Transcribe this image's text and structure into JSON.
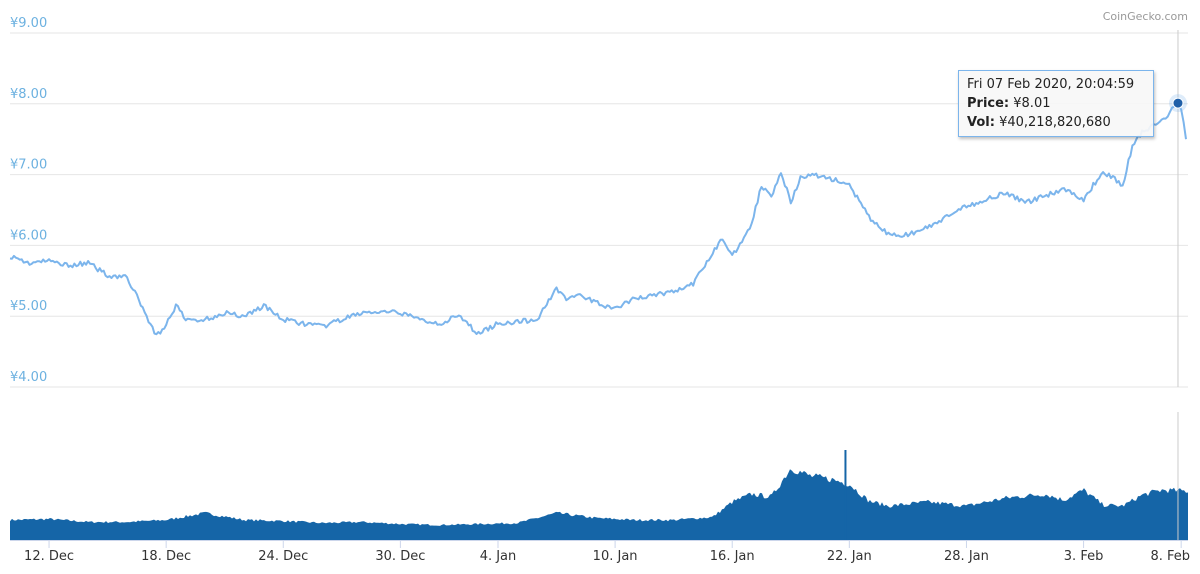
{
  "credit": "CoinGecko.com",
  "tooltip": {
    "date": "Fri 07 Feb 2020, 20:04:59",
    "price_label": "Price:",
    "price_value": "¥8.01",
    "vol_label": "Vol:",
    "vol_value": "¥40,218,820,680"
  },
  "colors": {
    "price_line": "#7cb5ec",
    "volume_fill": "#1565a7",
    "hover_point": "#1f5fa8",
    "grid": "#e6e6e6",
    "ytick": "#6cb1e0"
  },
  "chart_data": {
    "type": "line",
    "x_range": [
      "2019-12-10",
      "2020-02-08"
    ],
    "xtick_labels": [
      "12. Dec",
      "18. Dec",
      "24. Dec",
      "30. Dec",
      "4. Jan",
      "10. Jan",
      "16. Jan",
      "22. Jan",
      "28. Jan",
      "3. Feb",
      "8. Feb"
    ],
    "xtick_dates": [
      "2019-12-12",
      "2019-12-18",
      "2019-12-24",
      "2019-12-30",
      "2020-01-04",
      "2020-01-10",
      "2020-01-16",
      "2020-01-22",
      "2020-01-28",
      "2020-02-03",
      "2020-02-08"
    ],
    "ytick_labels": [
      "¥4.00",
      "¥5.00",
      "¥6.00",
      "¥7.00",
      "¥8.00",
      "¥9.00"
    ],
    "ylim": [
      4,
      9
    ],
    "price": {
      "x": [
        "2019-12-10",
        "2019-12-11",
        "2019-12-12",
        "2019-12-13",
        "2019-12-14",
        "2019-12-15",
        "2019-12-16",
        "2019-12-17",
        "2019-12-17T12:00",
        "2019-12-18",
        "2019-12-18T12:00",
        "2019-12-19",
        "2019-12-20",
        "2019-12-21",
        "2019-12-22",
        "2019-12-23",
        "2019-12-24",
        "2019-12-25",
        "2019-12-26",
        "2019-12-27",
        "2019-12-28",
        "2019-12-29",
        "2019-12-30",
        "2019-12-31",
        "2020-01-01",
        "2020-01-02",
        "2020-01-03",
        "2020-01-04",
        "2020-01-05",
        "2020-01-06",
        "2020-01-07",
        "2020-01-07T12:00",
        "2020-01-08",
        "2020-01-09",
        "2020-01-10",
        "2020-01-11",
        "2020-01-12",
        "2020-01-13",
        "2020-01-14",
        "2020-01-15",
        "2020-01-15T12:00",
        "2020-01-16",
        "2020-01-17",
        "2020-01-17T12:00",
        "2020-01-18",
        "2020-01-18T12:00",
        "2020-01-19",
        "2020-01-19T12:00",
        "2020-01-20",
        "2020-01-21",
        "2020-01-22",
        "2020-01-23",
        "2020-01-24",
        "2020-01-25",
        "2020-01-26",
        "2020-01-27",
        "2020-01-28",
        "2020-01-29",
        "2020-01-30",
        "2020-01-31",
        "2020-02-01",
        "2020-02-02",
        "2020-02-03",
        "2020-02-04",
        "2020-02-05",
        "2020-02-05T12:00",
        "2020-02-06",
        "2020-02-07",
        "2020-02-07T20:05",
        "2020-02-08",
        "2020-02-08T06:00"
      ],
      "y": [
        5.85,
        5.75,
        5.78,
        5.72,
        5.75,
        5.58,
        5.55,
        5.0,
        4.72,
        4.88,
        5.15,
        4.95,
        4.95,
        5.05,
        5.0,
        5.15,
        4.95,
        4.9,
        4.85,
        4.95,
        5.05,
        5.05,
        5.05,
        4.95,
        4.9,
        5.0,
        4.75,
        4.9,
        4.92,
        4.95,
        5.4,
        5.25,
        5.3,
        5.2,
        5.1,
        5.25,
        5.3,
        5.35,
        5.45,
        5.9,
        6.1,
        5.85,
        6.3,
        6.85,
        6.7,
        7.05,
        6.6,
        6.95,
        7.0,
        6.95,
        6.85,
        6.4,
        6.15,
        6.15,
        6.25,
        6.4,
        6.55,
        6.65,
        6.75,
        6.6,
        6.7,
        6.8,
        6.65,
        7.05,
        6.85,
        7.4,
        7.6,
        7.75,
        8.01,
        7.95,
        7.5
      ]
    },
    "volume": {
      "x": [
        "2019-12-10",
        "2019-12-12",
        "2019-12-14",
        "2019-12-16",
        "2019-12-18",
        "2019-12-20",
        "2019-12-22",
        "2019-12-24",
        "2019-12-26",
        "2019-12-28",
        "2019-12-30",
        "2020-01-01",
        "2020-01-03",
        "2020-01-05",
        "2020-01-07",
        "2020-01-09",
        "2020-01-11",
        "2020-01-13",
        "2020-01-15",
        "2020-01-16",
        "2020-01-17",
        "2020-01-18",
        "2020-01-19",
        "2020-01-20",
        "2020-01-21",
        "2020-01-22",
        "2020-01-23",
        "2020-01-24",
        "2020-01-26",
        "2020-01-28",
        "2020-01-30",
        "2020-02-01",
        "2020-02-02",
        "2020-02-03",
        "2020-02-04",
        "2020-02-05",
        "2020-02-06",
        "2020-02-07",
        "2020-02-08T06:00"
      ],
      "y": [
        20,
        21,
        18,
        18,
        20,
        27,
        20,
        19,
        17,
        18,
        16,
        15,
        16,
        17,
        27,
        22,
        20,
        20,
        23,
        38,
        46,
        43,
        72,
        64,
        61,
        56,
        39,
        34,
        38,
        34,
        42,
        46,
        40,
        50,
        35,
        34,
        45,
        50,
        49
      ]
    },
    "volume_spike": {
      "x": "2020-01-21T18:00",
      "y": 90
    }
  }
}
